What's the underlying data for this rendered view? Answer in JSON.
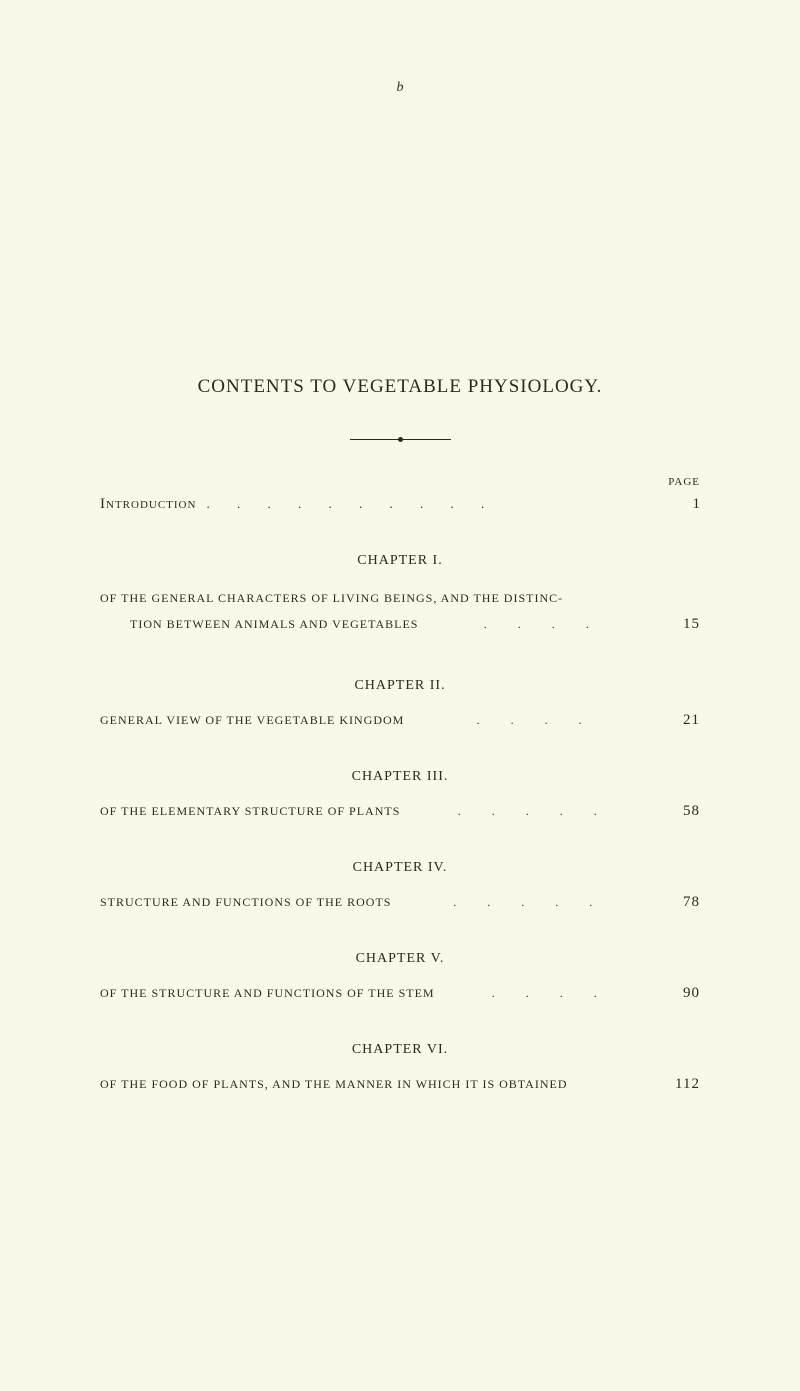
{
  "top_mark": "b",
  "main_title": "CONTENTS TO VEGETABLE PHYSIOLOGY.",
  "page_label": "PAGE",
  "introduction": {
    "label": "Introduction",
    "page": "1"
  },
  "chapters": [
    {
      "heading": "CHAPTER I.",
      "line1": "OF THE GENERAL CHARACTERS OF LIVING BEINGS, AND THE DISTINC-",
      "line2": "TION BETWEEN ANIMALS AND VEGETABLES",
      "page": "15"
    },
    {
      "heading": "CHAPTER II.",
      "line1": "GENERAL VIEW OF THE VEGETABLE KINGDOM",
      "page": "21"
    },
    {
      "heading": "CHAPTER III.",
      "line1": "OF THE ELEMENTARY STRUCTURE OF PLANTS",
      "page": "58"
    },
    {
      "heading": "CHAPTER IV.",
      "line1": "STRUCTURE AND FUNCTIONS OF THE ROOTS",
      "page": "78"
    },
    {
      "heading": "CHAPTER V.",
      "line1": "OF THE STRUCTURE AND FUNCTIONS OF THE STEM",
      "page": "90"
    },
    {
      "heading": "CHAPTER VI.",
      "line1": "OF THE FOOD OF PLANTS, AND THE MANNER IN WHICH IT IS OBTAINED",
      "page": "112"
    }
  ]
}
